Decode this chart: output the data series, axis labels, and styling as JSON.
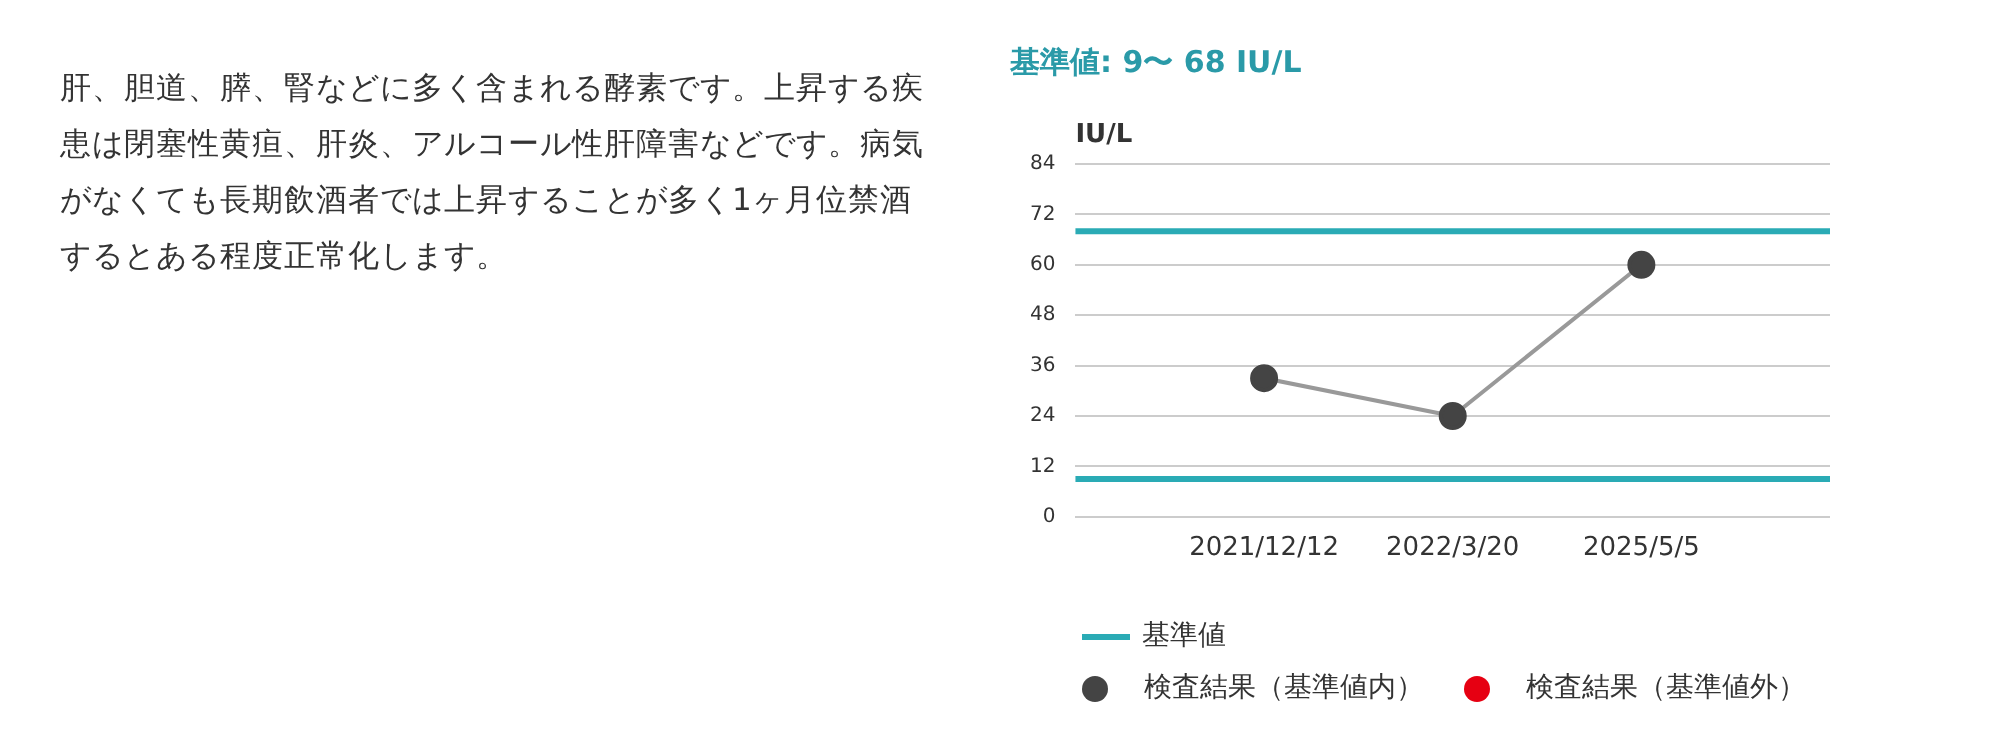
{
  "chart_data": {
    "type": "line",
    "title": "基準値: 9〜 68 IU/L",
    "ylabel": "IU/L",
    "annotations": [
      "肝、胆道、膵、腎などに多く含まれる酵素です。上昇する疾患は閉塞性黄疸、肝炎、アルコール性肝障害などです。病気がなくても長期飲酒者では上昇することが多く1ヶ月位禁酒するとある程度正常化します。"
    ],
    "categories": [
      null,
      "2021/12/12",
      "2022/3/20",
      "2025/5/5",
      null
    ],
    "series": [
      {
        "name": "検査結果（基準値内）",
        "color": "#444444",
        "values": [
          null,
          33,
          24,
          60,
          null
        ]
      },
      {
        "name": "検査結果（基準値外）",
        "color": "#e60012",
        "values": [
          null,
          null,
          null,
          null,
          null
        ]
      }
    ],
    "ref_lines": [
      {
        "axis": "y",
        "value": 68,
        "label": "基準値",
        "color": "#2aabb5"
      },
      {
        "axis": "y",
        "value": 9,
        "color": "#2aabb5"
      }
    ],
    "ylim": [
      0,
      84
    ],
    "yticks": [
      0,
      12,
      24,
      36,
      48,
      60,
      72,
      84
    ],
    "grid": "y",
    "legend": "bottom",
    "marker": "circle",
    "line_style": "solid"
  }
}
